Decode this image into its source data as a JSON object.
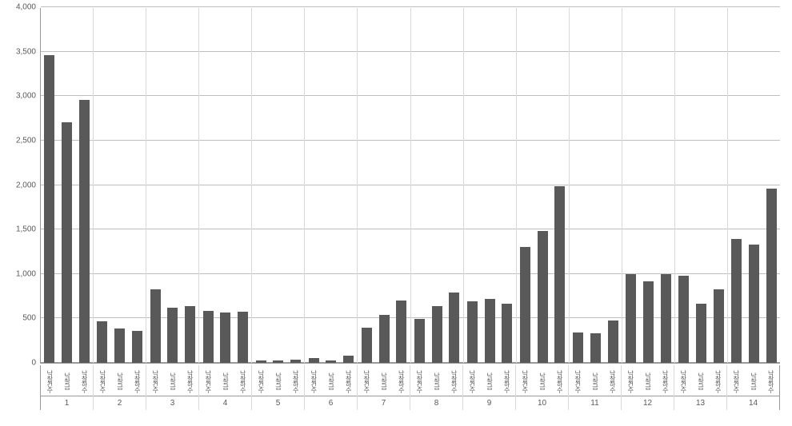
{
  "chart": {
    "type": "bar",
    "background_color": "#ffffff",
    "grid_color": "#bfbfbf",
    "axis_color": "#999999",
    "tick_label_color": "#595959",
    "tick_label_fontsize": 10,
    "sub_label_fontsize": 8,
    "ymin": 0,
    "ymax": 4000,
    "ytick_step": 500,
    "yticks": [
      "0",
      "500",
      "1,000",
      "1,500",
      "2,000",
      "2,500",
      "3,000",
      "3,500",
      "4,000"
    ],
    "bar_color": "#595959",
    "bar_width_ratio": 0.6,
    "sub_categories": [
      "낙찰건수",
      "낙찰금",
      "낙찰하수"
    ],
    "groups": [
      {
        "label": "1",
        "values": [
          3470,
          2710,
          2960
        ]
      },
      {
        "label": "2",
        "values": [
          470,
          390,
          360
        ]
      },
      {
        "label": "3",
        "values": [
          830,
          620,
          640
        ]
      },
      {
        "label": "4",
        "values": [
          590,
          570,
          580
        ]
      },
      {
        "label": "5",
        "values": [
          30,
          30,
          40
        ]
      },
      {
        "label": "6",
        "values": [
          50,
          30,
          80
        ]
      },
      {
        "label": "7",
        "values": [
          400,
          540,
          700
        ]
      },
      {
        "label": "8",
        "values": [
          500,
          640,
          790
        ]
      },
      {
        "label": "9",
        "values": [
          690,
          720,
          670
        ]
      },
      {
        "label": "10",
        "values": [
          1310,
          1490,
          1990
        ]
      },
      {
        "label": "11",
        "values": [
          340,
          330,
          480
        ]
      },
      {
        "label": "12",
        "values": [
          1000,
          920,
          1000
        ]
      },
      {
        "label": "13",
        "values": [
          980,
          670,
          830
        ]
      },
      {
        "label": "14",
        "values": [
          1400,
          1330,
          1960
        ]
      }
    ]
  }
}
